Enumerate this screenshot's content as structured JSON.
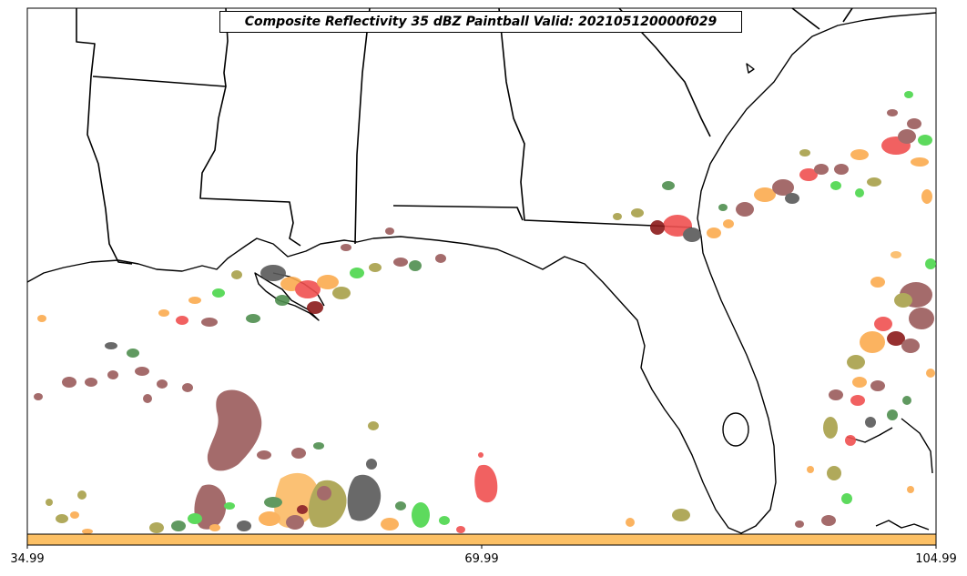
{
  "map": {
    "title": "Composite Reflectivity 35 dBZ Paintball Valid: 202105120000f029",
    "region": "Southeastern United States / Gulf of Mexico",
    "features": [
      "state boundaries",
      "coastline",
      "reflectivity paintball blobs"
    ]
  },
  "colorbar": {
    "color": "#fcc065",
    "tick_labels": [
      "34.99",
      "69.99",
      "104.99"
    ]
  },
  "paintball_colors": {
    "maroon": "#9b5b5b",
    "dark_green": "#4f8f4f",
    "light_green": "#4cd64c",
    "orange": "#fbab4f",
    "light_orange": "#fbbb66",
    "red": "#f05050",
    "olive": "#a8a04a",
    "gray": "#595959",
    "dark_red": "#8b1a1a"
  }
}
